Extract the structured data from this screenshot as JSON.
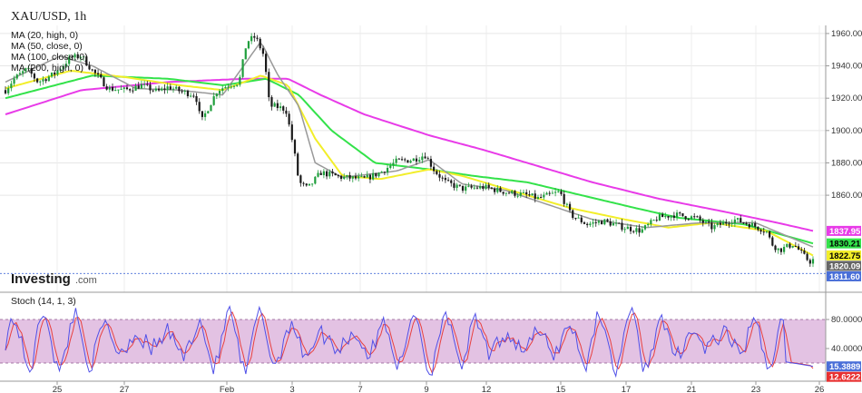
{
  "chart_data": [
    {
      "type": "candlestick",
      "title": "XAU/USD, 1h",
      "legend": [
        "MA (20, high, 0)",
        "MA (50, close, 0)",
        "MA (100, close, 0)",
        "MA (200, high, 0)"
      ],
      "legend_placement": "top-left",
      "ylim": [
        1800,
        1965
      ],
      "y_ticks": [
        "1960.00",
        "1940.00",
        "1920.00",
        "1900.00",
        "1880.00",
        "1860.00"
      ],
      "x_ticks": [
        "25",
        "27",
        "Feb",
        "3",
        "7",
        "9",
        "12",
        "15",
        "17",
        "21",
        "23",
        "26"
      ],
      "grid": true,
      "colors": {
        "up": "#1f9e3c",
        "down": "#1a1a1a",
        "ma20": "#999999",
        "ma50": "#f2ee2a",
        "ma100": "#33e24a",
        "ma200": "#e83be8"
      },
      "price_path": [
        [
          0,
          1925
        ],
        [
          8,
          1932
        ],
        [
          20,
          1938
        ],
        [
          30,
          1930
        ],
        [
          45,
          1935
        ],
        [
          60,
          1945
        ],
        [
          70,
          1946
        ],
        [
          80,
          1937
        ],
        [
          95,
          1926
        ],
        [
          110,
          1925
        ],
        [
          125,
          1928
        ],
        [
          140,
          1924
        ],
        [
          150,
          1927
        ],
        [
          162,
          1924
        ],
        [
          175,
          1922
        ],
        [
          180,
          1905
        ],
        [
          185,
          1912
        ],
        [
          195,
          1925
        ],
        [
          205,
          1928
        ],
        [
          215,
          1930
        ],
        [
          222,
          1955
        ],
        [
          230,
          1958
        ],
        [
          238,
          1946
        ],
        [
          243,
          1915
        ],
        [
          248,
          1915
        ],
        [
          258,
          1913
        ],
        [
          265,
          1890
        ],
        [
          270,
          1868
        ],
        [
          278,
          1864
        ],
        [
          290,
          1874
        ],
        [
          310,
          1871
        ],
        [
          330,
          1870
        ],
        [
          345,
          1874
        ],
        [
          360,
          1881
        ],
        [
          375,
          1882
        ],
        [
          386,
          1885
        ],
        [
          395,
          1875
        ],
        [
          405,
          1868
        ],
        [
          420,
          1864
        ],
        [
          440,
          1865
        ],
        [
          460,
          1862
        ],
        [
          480,
          1860
        ],
        [
          490,
          1858
        ],
        [
          510,
          1862
        ],
        [
          520,
          1848
        ],
        [
          535,
          1842
        ],
        [
          550,
          1844
        ],
        [
          570,
          1840
        ],
        [
          585,
          1838
        ],
        [
          600,
          1846
        ],
        [
          615,
          1848
        ],
        [
          635,
          1846
        ],
        [
          650,
          1840
        ],
        [
          670,
          1845
        ],
        [
          685,
          1842
        ],
        [
          700,
          1838
        ],
        [
          705,
          1830
        ],
        [
          712,
          1826
        ],
        [
          725,
          1830
        ],
        [
          735,
          1822
        ],
        [
          740,
          1819
        ],
        [
          743,
          1820
        ]
      ],
      "ma20": [
        [
          0,
          1930
        ],
        [
          50,
          1946
        ],
        [
          80,
          1940
        ],
        [
          120,
          1926
        ],
        [
          160,
          1925
        ],
        [
          200,
          1922
        ],
        [
          235,
          1955
        ],
        [
          250,
          1935
        ],
        [
          270,
          1915
        ],
        [
          285,
          1880
        ],
        [
          310,
          1871
        ],
        [
          360,
          1875
        ],
        [
          390,
          1882
        ],
        [
          420,
          1867
        ],
        [
          460,
          1863
        ],
        [
          500,
          1854
        ],
        [
          540,
          1845
        ],
        [
          590,
          1840
        ],
        [
          640,
          1843
        ],
        [
          690,
          1843
        ],
        [
          743,
          1828
        ]
      ],
      "ma50": [
        [
          0,
          1926
        ],
        [
          60,
          1937
        ],
        [
          110,
          1933
        ],
        [
          160,
          1928
        ],
        [
          200,
          1925
        ],
        [
          235,
          1934
        ],
        [
          260,
          1928
        ],
        [
          285,
          1895
        ],
        [
          310,
          1872
        ],
        [
          345,
          1870
        ],
        [
          390,
          1876
        ],
        [
          420,
          1872
        ],
        [
          470,
          1862
        ],
        [
          520,
          1852
        ],
        [
          570,
          1845
        ],
        [
          610,
          1840
        ],
        [
          650,
          1843
        ],
        [
          700,
          1838
        ],
        [
          743,
          1822.75
        ]
      ],
      "ma100": [
        [
          0,
          1920
        ],
        [
          80,
          1934
        ],
        [
          150,
          1932
        ],
        [
          200,
          1928
        ],
        [
          240,
          1932
        ],
        [
          270,
          1922
        ],
        [
          300,
          1900
        ],
        [
          340,
          1880
        ],
        [
          390,
          1876
        ],
        [
          430,
          1872
        ],
        [
          480,
          1868
        ],
        [
          530,
          1860
        ],
        [
          580,
          1852
        ],
        [
          620,
          1846
        ],
        [
          680,
          1842
        ],
        [
          743,
          1830.21
        ]
      ],
      "ma200": [
        [
          0,
          1910
        ],
        [
          70,
          1925
        ],
        [
          150,
          1930
        ],
        [
          220,
          1932
        ],
        [
          260,
          1932
        ],
        [
          290,
          1922
        ],
        [
          330,
          1910
        ],
        [
          390,
          1897
        ],
        [
          440,
          1888
        ],
        [
          500,
          1876
        ],
        [
          540,
          1868
        ],
        [
          600,
          1858
        ],
        [
          660,
          1850
        ],
        [
          710,
          1843
        ],
        [
          743,
          1837.95
        ]
      ],
      "price_labels": [
        {
          "value": "1837.95",
          "color": "#e83be8",
          "y": 1837.95
        },
        {
          "value": "1830.21",
          "color": "#33e24a",
          "y": 1830.21
        },
        {
          "value": "1822.75",
          "color": "#f2ee2a",
          "y": 1822.75
        },
        {
          "value": "1820.09",
          "color": "#666666",
          "y": 1820.09
        },
        {
          "value": "1811.60",
          "color": "#4a6fd8",
          "y": 1811.6
        }
      ]
    },
    {
      "type": "line",
      "title": "Stoch (14, 1, 3)",
      "legend_placement": "top-left",
      "ylim": [
        0,
        100
      ],
      "y_ticks": [
        "80.0000",
        "40.0000"
      ],
      "band": [
        20,
        80
      ],
      "colors": {
        "k": "#5050e8",
        "d": "#e84040",
        "band": "#d8b0d8"
      },
      "price_labels": [
        {
          "value": "15.3889",
          "color": "#4a6fd8",
          "y": 15.3889
        },
        {
          "value": "12.6222",
          "color": "#e83030",
          "y": 12.6222
        }
      ]
    }
  ],
  "watermark": {
    "brand": "Investing",
    "suffix": ".com"
  }
}
